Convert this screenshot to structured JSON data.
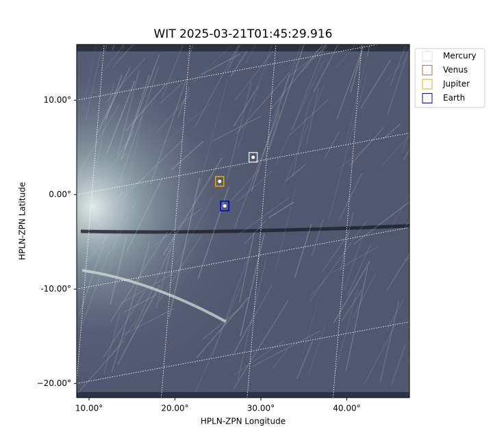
{
  "chart_data": {
    "type": "image",
    "title": "WIT 2025-03-21T01:45:29.916",
    "xlabel": "HPLN-ZPN Longitude",
    "ylabel": "HPLN-ZPN Latitude",
    "xlim": [
      8.56,
      47.3
    ],
    "ylim": [
      -21.5,
      15.9
    ],
    "xticks": [
      {
        "value": 10,
        "label": "10.00°"
      },
      {
        "value": 20,
        "label": "20.00°"
      },
      {
        "value": 30,
        "label": "30.00°"
      },
      {
        "value": 40,
        "label": "40.00°"
      }
    ],
    "yticks": [
      {
        "value": 10,
        "label": "10.00°"
      },
      {
        "value": 0,
        "label": "0.00°"
      },
      {
        "value": -10,
        "label": "-10.00°"
      },
      {
        "value": -20,
        "label": "−20.00°"
      }
    ],
    "grid": true,
    "legend": "upper right outside",
    "series": [
      {
        "name": "Mercury",
        "color": "#dddddd",
        "x": [
          29.1
        ],
        "values": [
          3.95
        ]
      },
      {
        "name": "Venus",
        "color": "#d2691e",
        "x": [
          25.2
        ],
        "values": [
          1.4
        ]
      },
      {
        "name": "Jupiter",
        "color": "#e6a817",
        "x": [
          25.2
        ],
        "values": [
          1.4
        ]
      },
      {
        "name": "Earth",
        "color": "#0000cc",
        "x": [
          25.8
        ],
        "values": [
          -1.2
        ]
      }
    ]
  }
}
